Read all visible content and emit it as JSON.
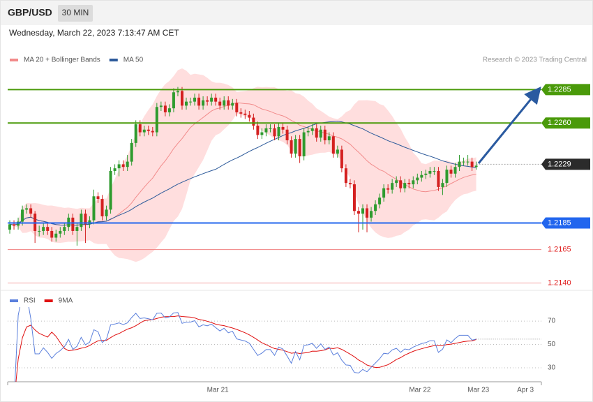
{
  "header": {
    "symbol": "GBP/USD",
    "interval": "30 MIN"
  },
  "timestamp": "Wednesday, March 22, 2023 7:13:47 AM CET",
  "chart_data": [
    {
      "type": "candlestick",
      "credit": "Research © 2023 Trading Central",
      "legend": [
        {
          "name": "MA 20 + Bollinger Bands",
          "color": "#f28b8b"
        },
        {
          "name": "MA 50",
          "color": "#2d5a9a"
        }
      ],
      "up_color": "#2e9b2e",
      "down_color": "#d42020",
      "band_color": "#ffdede",
      "xlim": [
        -0.5,
        126.5
      ],
      "ylim": [
        1.2135,
        1.23025
      ],
      "ohlc": [
        [
          1.218,
          1.2187,
          1.2177,
          1.2184
        ],
        [
          1.2184,
          1.2187,
          1.218,
          1.2183
        ],
        [
          1.2183,
          1.2189,
          1.218,
          1.2186
        ],
        [
          1.2186,
          1.2198,
          1.2183,
          1.2195
        ],
        [
          1.2195,
          1.2199,
          1.2192,
          1.2196
        ],
        [
          1.2196,
          1.2199,
          1.2189,
          1.2192
        ],
        [
          1.2192,
          1.2194,
          1.217,
          1.2179
        ],
        [
          1.2179,
          1.2183,
          1.2175,
          1.2179
        ],
        [
          1.2179,
          1.2185,
          1.2176,
          1.2182
        ],
        [
          1.2182,
          1.2185,
          1.2176,
          1.2179
        ],
        [
          1.2179,
          1.2182,
          1.2171,
          1.2174
        ],
        [
          1.2174,
          1.218,
          1.2171,
          1.2177
        ],
        [
          1.2177,
          1.2182,
          1.2174,
          1.2179
        ],
        [
          1.2179,
          1.2185,
          1.2176,
          1.2182
        ],
        [
          1.2182,
          1.2192,
          1.2179,
          1.2189
        ],
        [
          1.2189,
          1.2192,
          1.2176,
          1.2179
        ],
        [
          1.2179,
          1.2185,
          1.2168,
          1.2182
        ],
        [
          1.2182,
          1.2195,
          1.2179,
          1.2192
        ],
        [
          1.2192,
          1.2195,
          1.217,
          1.2184
        ],
        [
          1.2184,
          1.219,
          1.2181,
          1.2187
        ],
        [
          1.2187,
          1.221,
          1.2184,
          1.2205
        ],
        [
          1.2205,
          1.2208,
          1.22,
          1.2203
        ],
        [
          1.2203,
          1.2206,
          1.2187,
          1.219
        ],
        [
          1.219,
          1.2198,
          1.2187,
          1.2195
        ],
        [
          1.2195,
          1.2227,
          1.2192,
          1.2224
        ],
        [
          1.2224,
          1.2229,
          1.2221,
          1.2226
        ],
        [
          1.2226,
          1.2232,
          1.222,
          1.2229
        ],
        [
          1.2229,
          1.2232,
          1.2224,
          1.2227
        ],
        [
          1.2227,
          1.2236,
          1.2224,
          1.2231
        ],
        [
          1.2231,
          1.2248,
          1.2228,
          1.2245
        ],
        [
          1.2245,
          1.2262,
          1.2242,
          1.2259
        ],
        [
          1.2259,
          1.2262,
          1.225,
          1.2253
        ],
        [
          1.2253,
          1.2258,
          1.225,
          1.2255
        ],
        [
          1.2255,
          1.2258,
          1.2251,
          1.2254
        ],
        [
          1.2254,
          1.2257,
          1.225,
          1.2253
        ],
        [
          1.2253,
          1.2275,
          1.225,
          1.2272
        ],
        [
          1.2272,
          1.2276,
          1.2269,
          1.2273
        ],
        [
          1.2273,
          1.2276,
          1.2265,
          1.2268
        ],
        [
          1.2268,
          1.2274,
          1.2265,
          1.2271
        ],
        [
          1.2271,
          1.2286,
          1.2268,
          1.2283
        ],
        [
          1.2283,
          1.2287,
          1.228,
          1.2284
        ],
        [
          1.2284,
          1.2287,
          1.227,
          1.2273
        ],
        [
          1.2273,
          1.2279,
          1.227,
          1.2276
        ],
        [
          1.2276,
          1.2279,
          1.2273,
          1.2276
        ],
        [
          1.2276,
          1.2282,
          1.2273,
          1.2279
        ],
        [
          1.2279,
          1.2282,
          1.227,
          1.2273
        ],
        [
          1.2273,
          1.228,
          1.227,
          1.2277
        ],
        [
          1.2277,
          1.228,
          1.2273,
          1.2276
        ],
        [
          1.2276,
          1.2282,
          1.2273,
          1.2279
        ],
        [
          1.2279,
          1.2282,
          1.2273,
          1.2276
        ],
        [
          1.2276,
          1.2279,
          1.227,
          1.2273
        ],
        [
          1.2273,
          1.228,
          1.227,
          1.2277
        ],
        [
          1.2277,
          1.228,
          1.227,
          1.2273
        ],
        [
          1.2273,
          1.2278,
          1.227,
          1.2275
        ],
        [
          1.2275,
          1.2278,
          1.2265,
          1.2268
        ],
        [
          1.2268,
          1.2271,
          1.2264,
          1.2267
        ],
        [
          1.2267,
          1.227,
          1.2263,
          1.2266
        ],
        [
          1.2266,
          1.2269,
          1.2261,
          1.2264
        ],
        [
          1.2264,
          1.2267,
          1.2255,
          1.2258
        ],
        [
          1.2258,
          1.2261,
          1.2248,
          1.2251
        ],
        [
          1.2251,
          1.2256,
          1.2248,
          1.2253
        ],
        [
          1.2253,
          1.2259,
          1.225,
          1.2256
        ],
        [
          1.2256,
          1.2259,
          1.2253,
          1.2256
        ],
        [
          1.2256,
          1.2259,
          1.2247,
          1.225
        ],
        [
          1.225,
          1.226,
          1.2247,
          1.2257
        ],
        [
          1.2257,
          1.226,
          1.2252,
          1.2255
        ],
        [
          1.2255,
          1.2258,
          1.2244,
          1.2247
        ],
        [
          1.2247,
          1.225,
          1.2234,
          1.2237
        ],
        [
          1.2237,
          1.2251,
          1.2234,
          1.2248
        ],
        [
          1.2248,
          1.2251,
          1.223,
          1.2235
        ],
        [
          1.2235,
          1.2256,
          1.2232,
          1.2253
        ],
        [
          1.2253,
          1.2257,
          1.225,
          1.2254
        ],
        [
          1.2254,
          1.2259,
          1.2251,
          1.2256
        ],
        [
          1.2256,
          1.2259,
          1.2246,
          1.2249
        ],
        [
          1.2249,
          1.2258,
          1.2246,
          1.2255
        ],
        [
          1.2255,
          1.2258,
          1.2244,
          1.2247
        ],
        [
          1.2247,
          1.2253,
          1.2244,
          1.225
        ],
        [
          1.225,
          1.2253,
          1.2234,
          1.2237
        ],
        [
          1.2237,
          1.2243,
          1.2234,
          1.224
        ],
        [
          1.224,
          1.2243,
          1.2223,
          1.2226
        ],
        [
          1.2226,
          1.2229,
          1.2212,
          1.2215
        ],
        [
          1.2215,
          1.2218,
          1.2211,
          1.2214
        ],
        [
          1.2214,
          1.2217,
          1.2191,
          1.2194
        ],
        [
          1.2194,
          1.2197,
          1.2178,
          1.2192
        ],
        [
          1.2192,
          1.2199,
          1.218,
          1.2196
        ],
        [
          1.2196,
          1.2199,
          1.2178,
          1.2189
        ],
        [
          1.2189,
          1.2197,
          1.2186,
          1.2194
        ],
        [
          1.2194,
          1.2202,
          1.2191,
          1.2199
        ],
        [
          1.2199,
          1.2207,
          1.2196,
          1.2204
        ],
        [
          1.2204,
          1.2214,
          1.2201,
          1.2211
        ],
        [
          1.2211,
          1.2214,
          1.2207,
          1.221
        ],
        [
          1.221,
          1.2218,
          1.2207,
          1.2215
        ],
        [
          1.2215,
          1.222,
          1.2212,
          1.2217
        ],
        [
          1.2217,
          1.222,
          1.2208,
          1.2211
        ],
        [
          1.2211,
          1.2218,
          1.2208,
          1.2215
        ],
        [
          1.2215,
          1.2218,
          1.2211,
          1.2214
        ],
        [
          1.2214,
          1.222,
          1.2211,
          1.2217
        ],
        [
          1.2217,
          1.2222,
          1.2214,
          1.2219
        ],
        [
          1.2219,
          1.2224,
          1.2216,
          1.2221
        ],
        [
          1.2221,
          1.2225,
          1.2218,
          1.2222
        ],
        [
          1.2222,
          1.2227,
          1.2219,
          1.2224
        ],
        [
          1.2224,
          1.2227,
          1.2221,
          1.2224
        ],
        [
          1.2224,
          1.2227,
          1.2209,
          1.2212
        ],
        [
          1.2212,
          1.2218,
          1.2206,
          1.2215
        ],
        [
          1.2215,
          1.2228,
          1.2212,
          1.2225
        ],
        [
          1.2225,
          1.2228,
          1.2219,
          1.2222
        ],
        [
          1.2222,
          1.223,
          1.2219,
          1.2227
        ],
        [
          1.2227,
          1.2236,
          1.2224,
          1.2231
        ],
        [
          1.2231,
          1.2234,
          1.2228,
          1.2231
        ],
        [
          1.2231,
          1.2236,
          1.2228,
          1.2231
        ],
        [
          1.2231,
          1.2234,
          1.2224,
          1.2227
        ],
        [
          1.2227,
          1.2231,
          1.2225,
          1.2228
        ]
      ],
      "levels": {
        "values": [
          1.2285,
          1.226,
          1.2229,
          1.2185,
          1.2165,
          1.214
        ],
        "value_labels": [
          "1.2285",
          "1.2260",
          "1.2229",
          "1.2185",
          "1.2165",
          "1.2140"
        ],
        "colors": [
          "#4a9a0a",
          "#4a9a0a",
          "#2b2b2b",
          "#2266ee",
          "#f08080",
          "#f4a0a0"
        ],
        "boxed": [
          true,
          true,
          true,
          true,
          false,
          false
        ],
        "dotted": [
          false,
          false,
          true,
          false,
          false,
          false
        ]
      }
    },
    {
      "type": "rsi",
      "legend": [
        {
          "name": "RSI",
          "color": "#5a7fdc"
        },
        {
          "name": "9MA",
          "color": "#e01010"
        }
      ],
      "xlim": [
        -0.5,
        126.5
      ],
      "ylim": [
        18,
        82
      ],
      "yticks": [
        30,
        50,
        70
      ],
      "grid": true,
      "xticks": [
        {
          "value": 49.5,
          "label": "Mar 21"
        },
        {
          "value": 97.6,
          "label": "Mar 22"
        },
        {
          "value": 111.5,
          "label": "Mar 23"
        },
        {
          "value": 122.7,
          "label": "Apr 3"
        }
      ]
    }
  ]
}
